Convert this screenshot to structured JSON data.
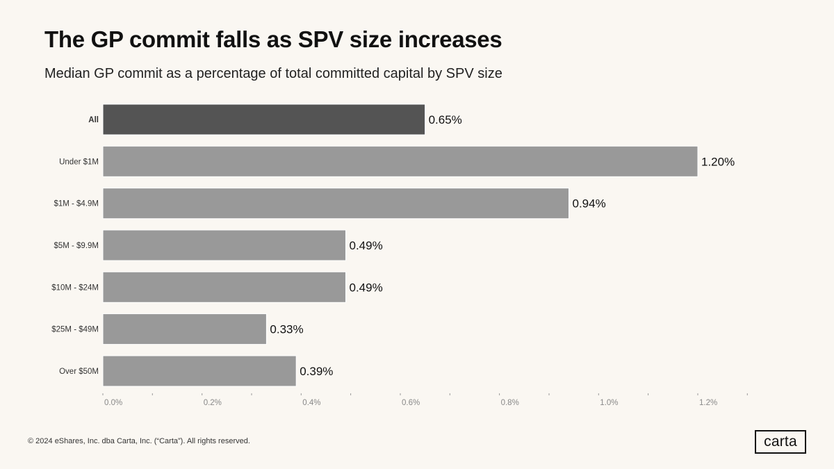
{
  "header": {
    "title": "The GP commit falls as SPV size increases",
    "subtitle": "Median GP commit as a percentage of total committed capital by SPV size"
  },
  "footer": {
    "copyright": "© 2024 eShares, Inc. dba Carta, Inc. (“Carta”). All rights reserved.",
    "logo_text": "carta"
  },
  "colors": {
    "highlight_bar": "#545454",
    "bar": "#999999",
    "axis_text": "#888888",
    "label_text": "#333333",
    "value_text": "#111111"
  },
  "chart_data": {
    "type": "bar",
    "orientation": "horizontal",
    "title": "The GP commit falls as SPV size increases",
    "subtitle": "Median GP commit as a percentage of total committed capital by SPV size",
    "categories": [
      "All",
      "Under $1M",
      "$1M - $4.9M",
      "$5M - $9.9M",
      "$10M - $24M",
      "$25M - $49M",
      "Over $50M"
    ],
    "values": [
      0.65,
      1.2,
      0.94,
      0.49,
      0.49,
      0.33,
      0.39
    ],
    "value_labels": [
      "0.65%",
      "1.20%",
      "0.94%",
      "0.49%",
      "0.49%",
      "0.33%",
      "0.39%"
    ],
    "highlighted_category": "All",
    "xlim": [
      0,
      1.3
    ],
    "xticks": [
      0,
      0.2,
      0.4,
      0.6,
      0.8,
      1.0,
      1.2
    ],
    "xtick_labels": [
      "0.0%",
      "0.2%",
      "0.4%",
      "0.6%",
      "0.8%",
      "1.0%",
      "1.2%"
    ],
    "xlabel": "",
    "ylabel": "",
    "grid": false
  }
}
